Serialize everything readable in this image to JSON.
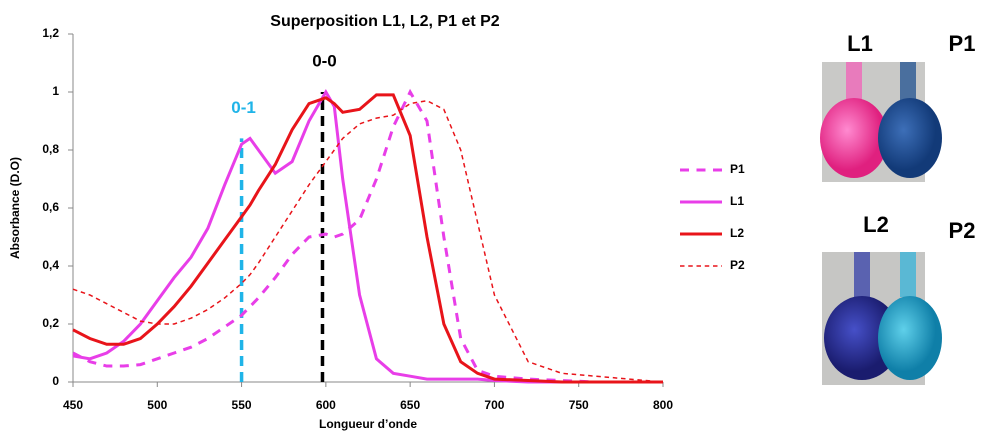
{
  "chart_data": {
    "type": "line",
    "title": "Superposition L1, L2, P1 et P2",
    "xlabel": "Longueur d’onde",
    "ylabel": "Absorbance (D.O)",
    "x": [
      450,
      460,
      470,
      480,
      490,
      500,
      510,
      520,
      530,
      540,
      550,
      555,
      560,
      570,
      580,
      590,
      600,
      605,
      610,
      620,
      630,
      640,
      650,
      660,
      670,
      680,
      690,
      700,
      720,
      740,
      760,
      780,
      800
    ],
    "series": [
      {
        "name": "P1",
        "color": "#e83ee8",
        "line_style": "dashed",
        "linewidth": 3,
        "values": [
          0.1,
          0.07,
          0.055,
          0.055,
          0.06,
          0.08,
          0.1,
          0.12,
          0.15,
          0.19,
          0.23,
          0.26,
          0.29,
          0.36,
          0.44,
          0.5,
          0.51,
          0.5,
          0.51,
          0.56,
          0.7,
          0.88,
          1.0,
          0.9,
          0.5,
          0.15,
          0.04,
          0.02,
          0.01,
          0.005,
          0,
          0,
          0
        ]
      },
      {
        "name": "L1",
        "color": "#e83ee8",
        "line_style": "solid",
        "linewidth": 3,
        "values": [
          0.09,
          0.08,
          0.1,
          0.14,
          0.2,
          0.28,
          0.36,
          0.43,
          0.53,
          0.68,
          0.82,
          0.84,
          0.8,
          0.72,
          0.76,
          0.9,
          1.0,
          0.95,
          0.7,
          0.3,
          0.08,
          0.03,
          0.02,
          0.01,
          0.01,
          0.01,
          0.01,
          0.005,
          0,
          0,
          0,
          0,
          0
        ]
      },
      {
        "name": "L2",
        "color": "#e8141a",
        "line_style": "solid",
        "linewidth": 3,
        "values": [
          0.18,
          0.15,
          0.13,
          0.13,
          0.15,
          0.2,
          0.26,
          0.33,
          0.41,
          0.49,
          0.57,
          0.61,
          0.66,
          0.75,
          0.87,
          0.96,
          0.98,
          0.96,
          0.93,
          0.94,
          0.99,
          0.99,
          0.85,
          0.5,
          0.2,
          0.07,
          0.03,
          0.01,
          0.005,
          0,
          0,
          0,
          0
        ]
      },
      {
        "name": "P2",
        "color": "#e8141a",
        "line_style": "dashed",
        "linewidth": 1.5,
        "values": [
          0.32,
          0.3,
          0.27,
          0.24,
          0.21,
          0.2,
          0.2,
          0.22,
          0.25,
          0.29,
          0.34,
          0.37,
          0.41,
          0.5,
          0.59,
          0.68,
          0.76,
          0.8,
          0.84,
          0.89,
          0.91,
          0.92,
          0.96,
          0.97,
          0.94,
          0.8,
          0.55,
          0.3,
          0.07,
          0.03,
          0.02,
          0.01,
          0
        ]
      }
    ],
    "xlim": [
      450,
      800
    ],
    "xticks": [
      450,
      500,
      550,
      600,
      650,
      700,
      750,
      800
    ],
    "ylim": [
      0,
      1.2
    ],
    "yticks": [
      0,
      {
        "value": 0.2,
        "label": "0,2"
      },
      {
        "value": 0.4,
        "label": "0,4"
      },
      {
        "value": 0.6,
        "label": "0,6"
      },
      {
        "value": 0.8,
        "label": "0,8"
      },
      1,
      {
        "value": 1.2,
        "label": "1,2"
      }
    ],
    "grid": false,
    "annotations": [
      {
        "text": "0-0",
        "x": 598,
        "y": 1,
        "color": "#000000"
      },
      {
        "text": "0-1",
        "x": 550,
        "y": 0.84,
        "color": "#1fb4e8"
      }
    ]
  },
  "photos": [
    {
      "labels": [
        "L1",
        "P1"
      ]
    },
    {
      "labels": [
        "L2",
        "P2"
      ]
    }
  ]
}
